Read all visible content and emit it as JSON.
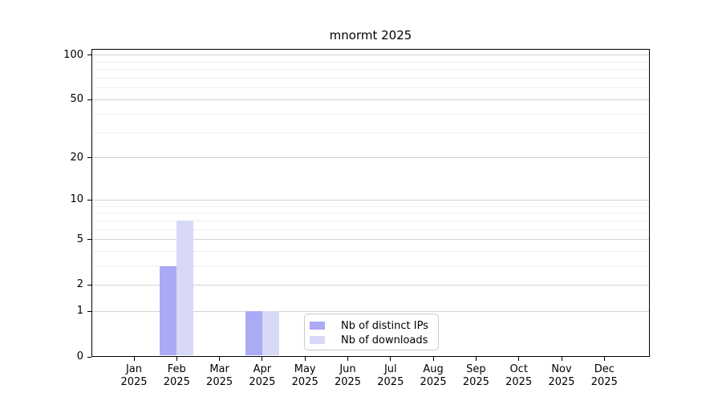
{
  "title": "mnormt 2025",
  "legend": {
    "items": [
      {
        "label": "Nb of distinct IPs",
        "color": "#aaaaf5"
      },
      {
        "label": "Nb of downloads",
        "color": "#d8d8f7"
      }
    ]
  },
  "chart_data": {
    "type": "bar",
    "title": "mnormt 2025",
    "y_scale": "log1p",
    "grid": "horizontal",
    "legend_position": "bottom-center-inside",
    "x_months": [
      "Jan",
      "Feb",
      "Mar",
      "Apr",
      "May",
      "Jun",
      "Jul",
      "Aug",
      "Sep",
      "Oct",
      "Nov",
      "Dec"
    ],
    "x_year": "2025",
    "series": [
      {
        "name": "Nb of distinct IPs",
        "color": "#aaaaf5",
        "values": [
          0,
          3,
          0,
          1,
          0,
          0,
          0,
          0,
          0,
          0,
          0,
          0
        ]
      },
      {
        "name": "Nb of downloads",
        "color": "#d8d8f7",
        "values": [
          0,
          7,
          0,
          1,
          0,
          0,
          0,
          0,
          0,
          0,
          0,
          0
        ]
      }
    ],
    "y_ticks": [
      0,
      1,
      2,
      5,
      10,
      20,
      50,
      100
    ],
    "y_minor_gridlines": [
      3,
      4,
      6,
      7,
      8,
      9,
      30,
      40,
      60,
      70,
      80,
      90
    ],
    "ylim": [
      0,
      110
    ],
    "colors": {
      "major_gridline": "#d2d2d2",
      "minor_gridline": "#efefef",
      "axis": "#000000"
    }
  }
}
